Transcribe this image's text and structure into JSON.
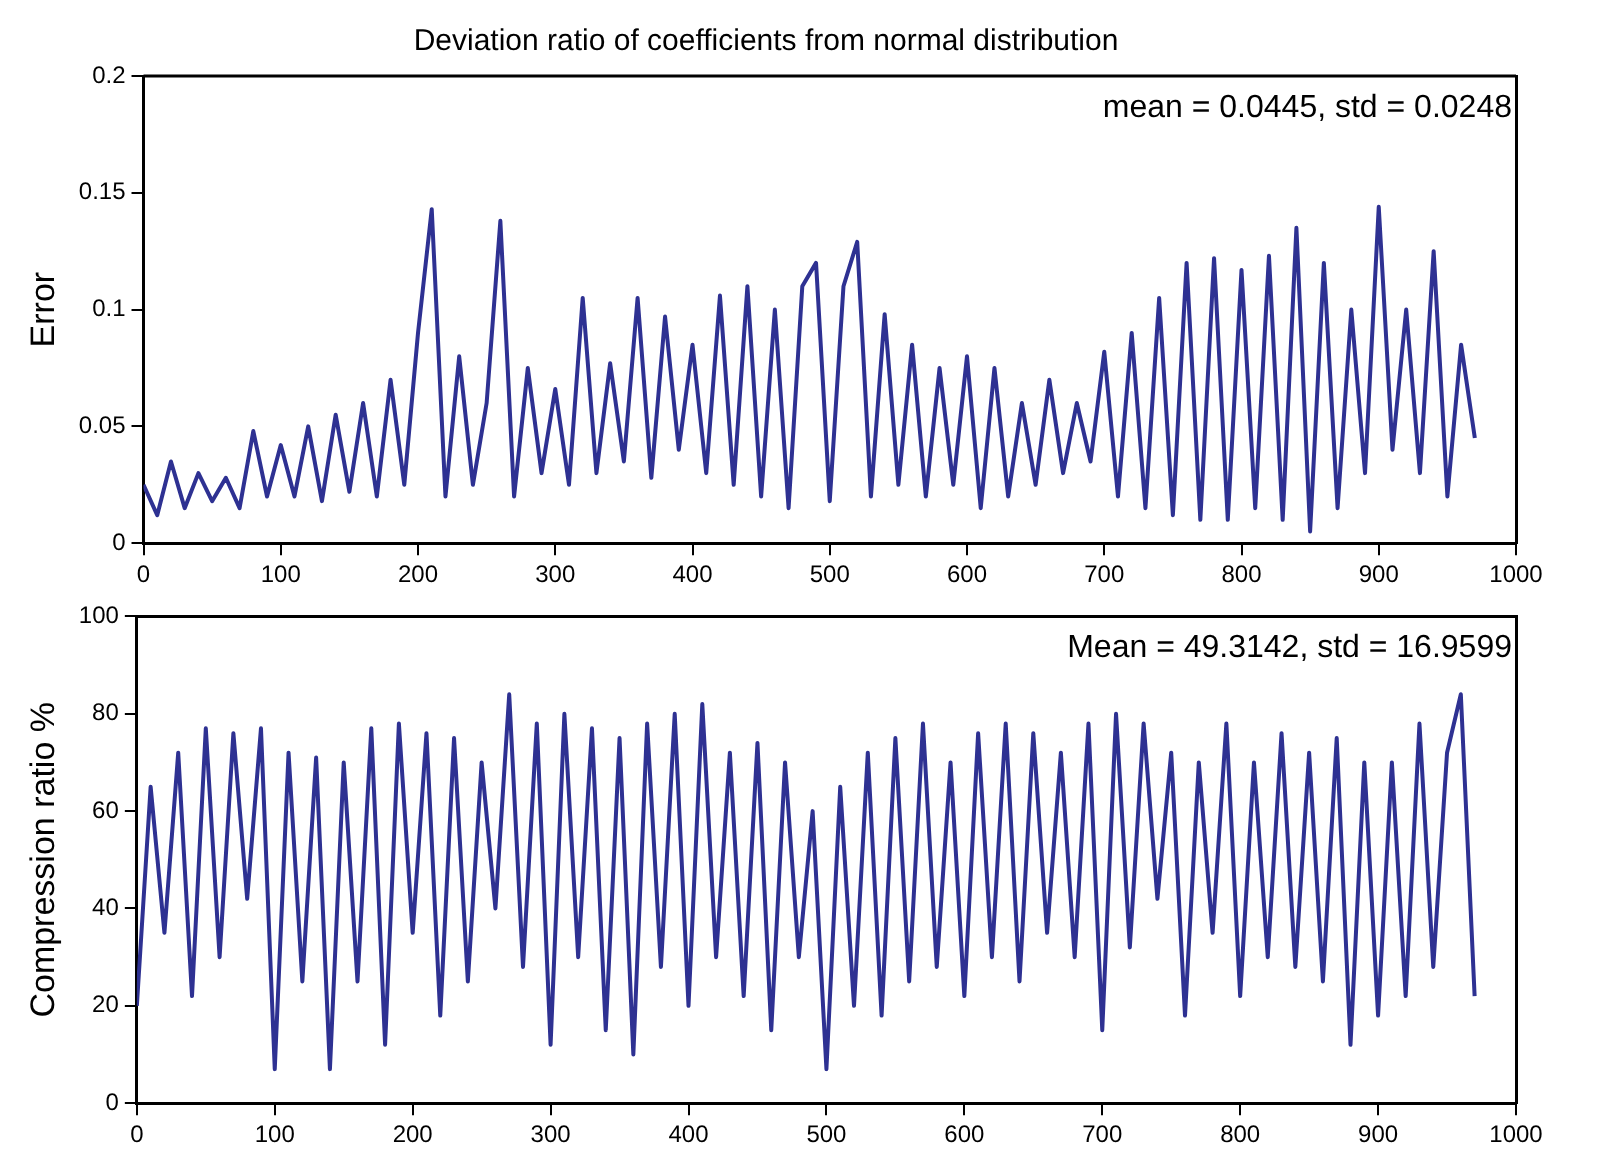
{
  "chart_data": [
    {
      "type": "line",
      "title": "Deviation ratio of coefficients from normal distribution",
      "ylabel": "Error",
      "annotations": [
        "mean = 0.0445, std = 0.0248"
      ],
      "xlim": [
        0,
        1000
      ],
      "xticks": [
        0,
        100,
        200,
        300,
        400,
        500,
        600,
        700,
        800,
        900,
        1000
      ],
      "ylim": [
        0,
        0.2
      ],
      "yticks": [
        0,
        0.05,
        0.1,
        0.15,
        0.2
      ],
      "grid": false,
      "legend": false,
      "marker": "none",
      "line_style": "solid",
      "x": [
        0,
        10,
        20,
        30,
        40,
        50,
        60,
        70,
        80,
        90,
        100,
        110,
        120,
        130,
        140,
        150,
        160,
        170,
        180,
        190,
        200,
        210,
        220,
        230,
        240,
        250,
        260,
        270,
        280,
        290,
        300,
        310,
        320,
        330,
        340,
        350,
        360,
        370,
        380,
        390,
        400,
        410,
        420,
        430,
        440,
        450,
        460,
        470,
        480,
        490,
        500,
        510,
        520,
        530,
        540,
        550,
        560,
        570,
        580,
        590,
        600,
        610,
        620,
        630,
        640,
        650,
        660,
        670,
        680,
        690,
        700,
        710,
        720,
        730,
        740,
        750,
        760,
        770,
        780,
        790,
        800,
        810,
        820,
        830,
        840,
        850,
        860,
        870,
        880,
        890,
        900,
        910,
        920,
        930,
        940,
        950,
        960,
        970
      ],
      "series": [
        {
          "color": "#2e3192",
          "values": [
            0.025,
            0.012,
            0.035,
            0.015,
            0.03,
            0.018,
            0.028,
            0.015,
            0.048,
            0.02,
            0.042,
            0.02,
            0.05,
            0.018,
            0.055,
            0.022,
            0.06,
            0.02,
            0.07,
            0.025,
            0.09,
            0.143,
            0.02,
            0.08,
            0.025,
            0.06,
            0.138,
            0.02,
            0.075,
            0.03,
            0.066,
            0.025,
            0.105,
            0.03,
            0.077,
            0.035,
            0.105,
            0.028,
            0.097,
            0.04,
            0.085,
            0.03,
            0.106,
            0.025,
            0.11,
            0.02,
            0.1,
            0.015,
            0.11,
            0.12,
            0.018,
            0.11,
            0.129,
            0.02,
            0.098,
            0.025,
            0.085,
            0.02,
            0.075,
            0.025,
            0.08,
            0.015,
            0.075,
            0.02,
            0.06,
            0.025,
            0.07,
            0.03,
            0.06,
            0.035,
            0.082,
            0.02,
            0.09,
            0.015,
            0.105,
            0.012,
            0.12,
            0.01,
            0.122,
            0.01,
            0.117,
            0.015,
            0.123,
            0.01,
            0.135,
            0.005,
            0.12,
            0.015,
            0.1,
            0.03,
            0.144,
            0.04,
            0.1,
            0.03,
            0.125,
            0.02,
            0.085,
            0.045
          ]
        }
      ]
    },
    {
      "type": "line",
      "ylabel": "Compression ratio %",
      "annotations": [
        "Mean = 49.3142, std = 16.9599"
      ],
      "xlim": [
        0,
        1000
      ],
      "xticks": [
        0,
        100,
        200,
        300,
        400,
        500,
        600,
        700,
        800,
        900,
        1000
      ],
      "ylim": [
        0,
        100
      ],
      "yticks": [
        0,
        20,
        40,
        60,
        80,
        100
      ],
      "grid": false,
      "legend": false,
      "marker": "none",
      "line_style": "solid",
      "x": [
        0,
        10,
        20,
        30,
        40,
        50,
        60,
        70,
        80,
        90,
        100,
        110,
        120,
        130,
        140,
        150,
        160,
        170,
        180,
        190,
        200,
        210,
        220,
        230,
        240,
        250,
        260,
        270,
        280,
        290,
        300,
        310,
        320,
        330,
        340,
        350,
        360,
        370,
        380,
        390,
        400,
        410,
        420,
        430,
        440,
        450,
        460,
        470,
        480,
        490,
        500,
        510,
        520,
        530,
        540,
        550,
        560,
        570,
        580,
        590,
        600,
        610,
        620,
        630,
        640,
        650,
        660,
        670,
        680,
        690,
        700,
        710,
        720,
        730,
        740,
        750,
        760,
        770,
        780,
        790,
        800,
        810,
        820,
        830,
        840,
        850,
        860,
        870,
        880,
        890,
        900,
        910,
        920,
        930,
        940,
        950,
        960,
        970
      ],
      "series": [
        {
          "color": "#2e3192",
          "values": [
            20,
            65,
            35,
            72,
            22,
            77,
            30,
            76,
            42,
            77,
            7,
            72,
            25,
            71,
            7,
            70,
            25,
            77,
            12,
            78,
            35,
            76,
            18,
            75,
            25,
            70,
            40,
            84,
            28,
            78,
            12,
            80,
            30,
            77,
            15,
            75,
            10,
            78,
            28,
            80,
            20,
            82,
            30,
            72,
            22,
            74,
            15,
            70,
            30,
            60,
            7,
            65,
            20,
            72,
            18,
            75,
            25,
            78,
            28,
            70,
            22,
            76,
            30,
            78,
            25,
            76,
            35,
            72,
            30,
            78,
            15,
            80,
            32,
            78,
            42,
            72,
            18,
            70,
            35,
            78,
            22,
            70,
            30,
            76,
            28,
            72,
            25,
            75,
            12,
            70,
            18,
            70,
            22,
            78,
            28,
            72,
            84,
            22
          ]
        }
      ]
    }
  ]
}
